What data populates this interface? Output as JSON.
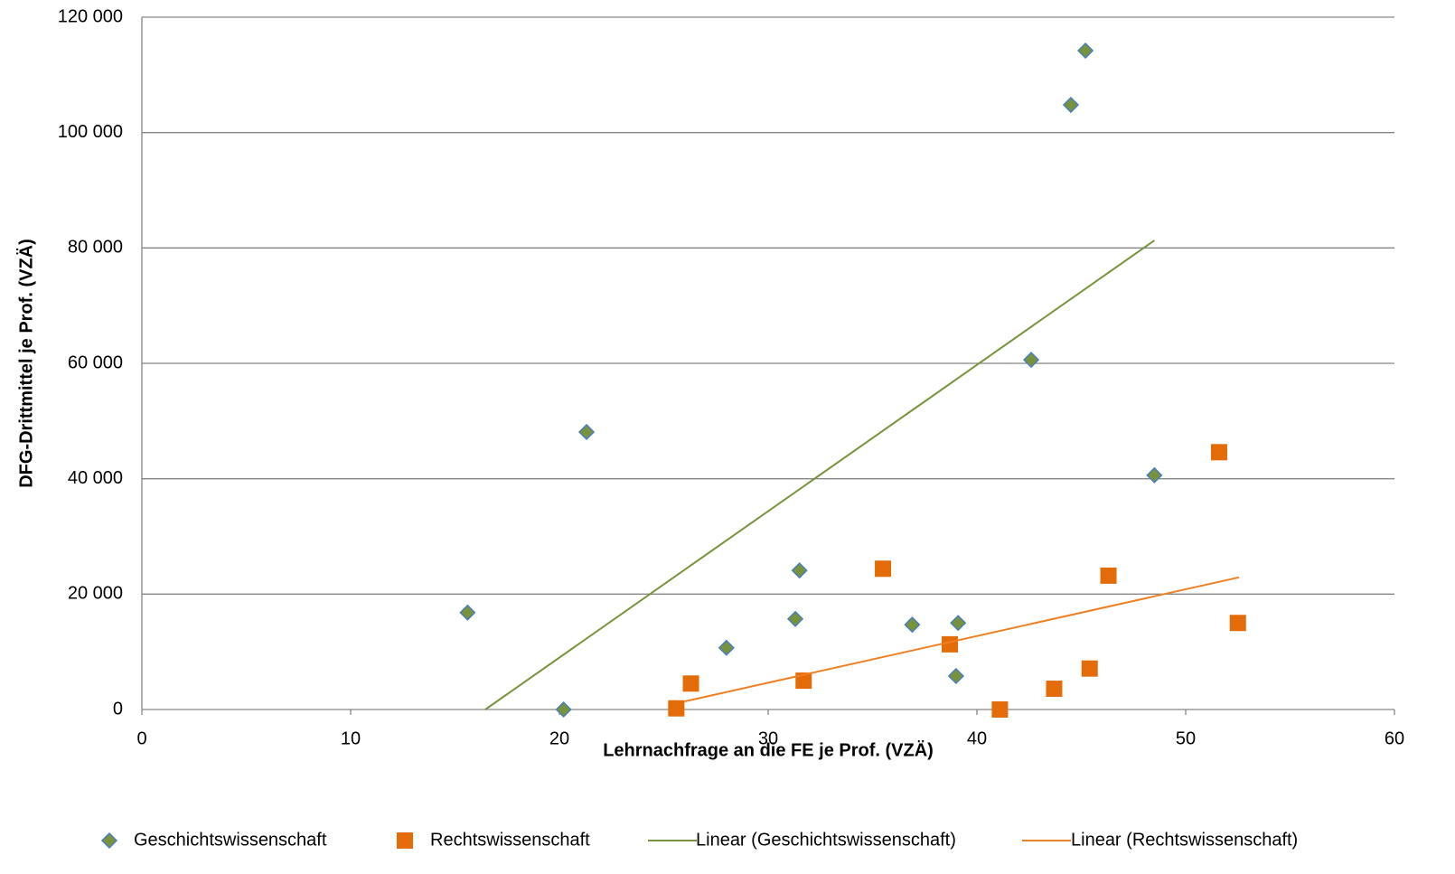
{
  "chart_data": {
    "type": "scatter",
    "xlabel": "Lehrnachfrage an die FE je Prof. (VZÄ)",
    "ylabel": "DFG-Drittmittel je Prof. (VZÄ)",
    "xlim": [
      0,
      60
    ],
    "ylim": [
      0,
      120000
    ],
    "xticks": [
      0,
      10,
      20,
      30,
      40,
      50,
      60
    ],
    "yticks": [
      0,
      {
        "value": 20000,
        "label": "20 000"
      },
      {
        "value": 40000,
        "label": "40 000"
      },
      {
        "value": 60000,
        "label": "60 000"
      },
      {
        "value": 80000,
        "label": "80 000"
      },
      {
        "value": 100000,
        "label": "100 000"
      },
      {
        "value": 120000,
        "label": "120 000"
      }
    ],
    "grid": true,
    "legend": "bottom",
    "series": [
      {
        "name": "Geschichtswissenschaft",
        "marker": "diamond",
        "color": "#77933c",
        "edgecolor": "#4a7ebb",
        "x": [
          15.6,
          20.2,
          21.3,
          28.0,
          31.3,
          31.5,
          36.9,
          39.1,
          39.0,
          42.6,
          44.5,
          45.2,
          48.5
        ],
        "values": [
          16800,
          0,
          48100,
          10700,
          15700,
          24100,
          14700,
          15000,
          5800,
          60600,
          104800,
          114200,
          40600
        ]
      },
      {
        "name": "Rechtswissenschaft",
        "marker": "square",
        "color": "#e36c09",
        "x": [
          25.6,
          26.3,
          31.7,
          35.5,
          38.7,
          41.1,
          43.7,
          45.4,
          46.3,
          51.6,
          52.5
        ],
        "values": [
          200,
          4500,
          5000,
          24400,
          11300,
          0,
          3600,
          7100,
          23200,
          44600,
          15000
        ]
      },
      {
        "name": "Linear (Geschichtswissenschaft)",
        "marker": "line",
        "color": "#77933c",
        "x": [
          16.45,
          48.5
        ],
        "values": [
          0,
          81300
        ]
      },
      {
        "name": "Linear (Rechtswissenschaft)",
        "marker": "line",
        "color": "#f07f22",
        "x": [
          26.0,
          52.55
        ],
        "values": [
          1400,
          22900
        ]
      }
    ]
  }
}
